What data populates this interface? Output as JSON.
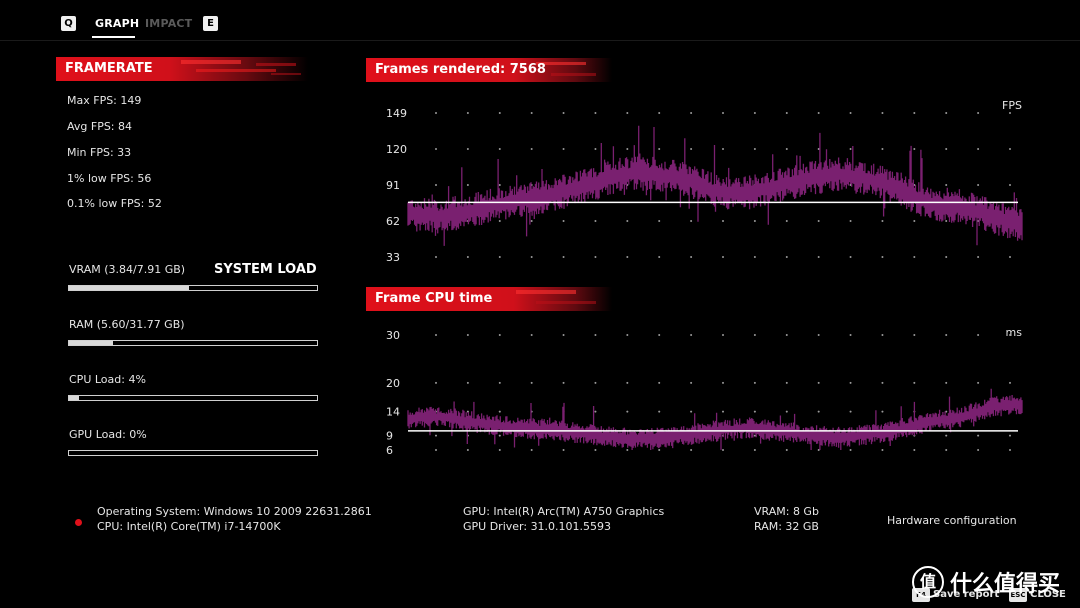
{
  "topbar": {
    "key_left": "Q",
    "tabs": [
      {
        "label": "GRAPH",
        "active": true
      },
      {
        "label": "IMPACT",
        "active": false
      }
    ],
    "key_right": "E"
  },
  "framerate": {
    "title": "FRAMERATE",
    "max": "Max FPS: 149",
    "avg": "Avg FPS: 84",
    "min": "Min FPS: 33",
    "low1": "1% low FPS: 56",
    "low01": "0.1% low FPS: 52"
  },
  "system_load": {
    "title": "SYSTEM LOAD",
    "items": [
      {
        "label": "VRAM (3.84/7.91 GB)",
        "fraction": 0.485
      },
      {
        "label": "RAM (5.60/31.77 GB)",
        "fraction": 0.176
      },
      {
        "label": "CPU Load: 4%",
        "fraction": 0.04
      },
      {
        "label": "GPU Load: 0%",
        "fraction": 0.0
      }
    ]
  },
  "charts": {
    "fps_title": "Frames rendered: 7568",
    "cpu_title": "Frame CPU time"
  },
  "chart_data": [
    {
      "type": "line",
      "title": "Frames rendered: 7568",
      "ylabel": "FPS",
      "yticks": [
        149,
        120,
        91,
        62,
        33
      ],
      "ylim": [
        33,
        149
      ],
      "reference_line": 77,
      "series_color": "#7a2070",
      "x": [
        0,
        0.05,
        0.1,
        0.15,
        0.2,
        0.25,
        0.3,
        0.35,
        0.4,
        0.45,
        0.5,
        0.55,
        0.6,
        0.65,
        0.7,
        0.75,
        0.8,
        0.85,
        0.9,
        0.95,
        1.0
      ],
      "values": [
        68,
        66,
        70,
        76,
        80,
        85,
        92,
        100,
        100,
        96,
        86,
        84,
        90,
        96,
        100,
        96,
        88,
        76,
        74,
        66,
        58
      ],
      "spread": 14
    },
    {
      "type": "line",
      "title": "Frame CPU time",
      "ylabel": "ms",
      "yticks": [
        30,
        20,
        14,
        9,
        6
      ],
      "ylim": [
        6,
        30
      ],
      "reference_line": 10,
      "series_color": "#7a2070",
      "x": [
        0,
        0.05,
        0.1,
        0.15,
        0.2,
        0.25,
        0.3,
        0.35,
        0.4,
        0.45,
        0.5,
        0.55,
        0.6,
        0.65,
        0.7,
        0.75,
        0.8,
        0.85,
        0.9,
        0.95,
        1.0
      ],
      "values": [
        12.5,
        13,
        12,
        11,
        10.5,
        10,
        9.2,
        8.5,
        8.5,
        9,
        10,
        10.6,
        10,
        9.2,
        8.6,
        9.2,
        10.3,
        12,
        12.8,
        15,
        15.5
      ],
      "spread": 2.2
    }
  ],
  "footer": {
    "os": "Operating System: Windows 10 2009 22631.2861",
    "cpu": "CPU: Intel(R) Core(TM) i7-14700K",
    "gpu": "GPU: Intel(R) Arc(TM) A750 Graphics",
    "gpu_driver": "GPU Driver: 31.0.101.5593",
    "vram": "VRAM: 8 Gb",
    "ram": "RAM: 32 GB",
    "hw_config": "Hardware configuration"
  },
  "bottom_buttons": {
    "save_key": "F4",
    "save_label": "Save report",
    "close_key": "ESC",
    "close_label": "CLOSE"
  },
  "watermark": {
    "logo": "值",
    "text": "什么值得买"
  },
  "colors": {
    "banner_red": "#e0101a",
    "series": "#7a2070",
    "reference_line": "#ffffff"
  }
}
